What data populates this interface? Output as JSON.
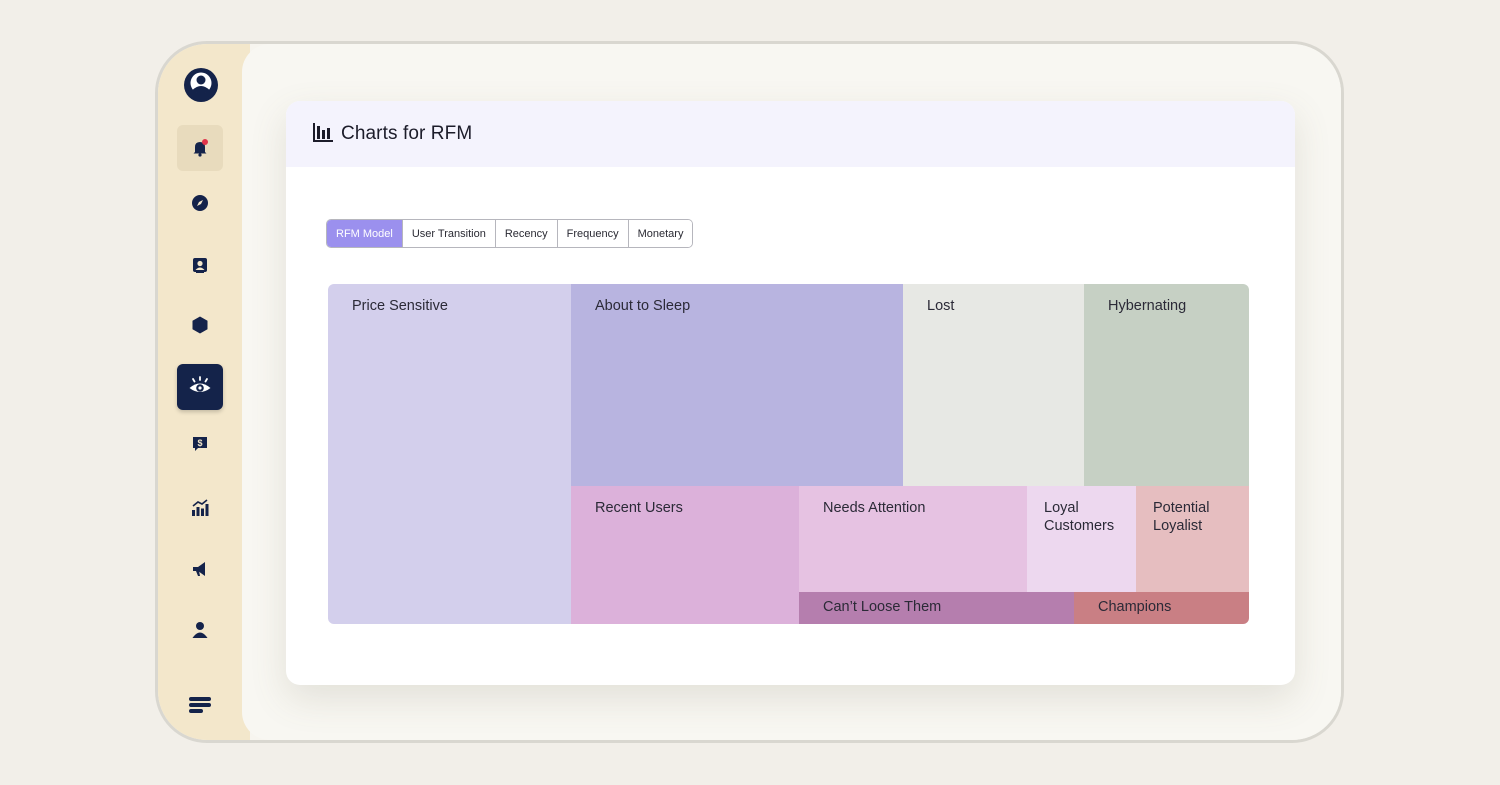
{
  "sidebar": {
    "items": [
      {
        "icon": "bell-icon"
      },
      {
        "icon": "compass-icon"
      },
      {
        "icon": "contacts-icon"
      },
      {
        "icon": "hexagon-icon"
      },
      {
        "icon": "eye-icon"
      },
      {
        "icon": "dollar-chat-icon"
      },
      {
        "icon": "bar-chart-icon"
      },
      {
        "icon": "megaphone-icon"
      },
      {
        "icon": "user-icon"
      },
      {
        "icon": "menu-icon"
      }
    ],
    "active_item": "eye-icon"
  },
  "card": {
    "title": "Charts for RFM"
  },
  "tabs": [
    {
      "label": "RFM Model",
      "active": true
    },
    {
      "label": "User Transition",
      "active": false
    },
    {
      "label": "Recency",
      "active": false
    },
    {
      "label": "Frequency",
      "active": false
    },
    {
      "label": "Monetary",
      "active": false
    }
  ],
  "treemap": {
    "segments": [
      {
        "name": "Price Sensitive",
        "color": "#d3cfec"
      },
      {
        "name": "About to Sleep",
        "color": "#b8b4e0"
      },
      {
        "name": "Lost",
        "color": "#e7e8e4"
      },
      {
        "name": "Hybernating",
        "color": "#c6d0c4"
      },
      {
        "name": "Recent Users",
        "color": "#dcb1da"
      },
      {
        "name": "Needs Attention",
        "color": "#e6c2e2"
      },
      {
        "name": "Loyal Customers",
        "color": "#edd8ef"
      },
      {
        "name": "Potential Loyalist",
        "color": "#e6bec0"
      },
      {
        "name": "Can’t Loose Them",
        "color": "#b57eae"
      },
      {
        "name": "Champions",
        "color": "#c97f84"
      }
    ]
  },
  "colors": {
    "accent": "#9b90ee",
    "nav_active": "#14234a",
    "sidebar_bg": "#f3e7cb",
    "notification_dot": "#e0334a"
  }
}
